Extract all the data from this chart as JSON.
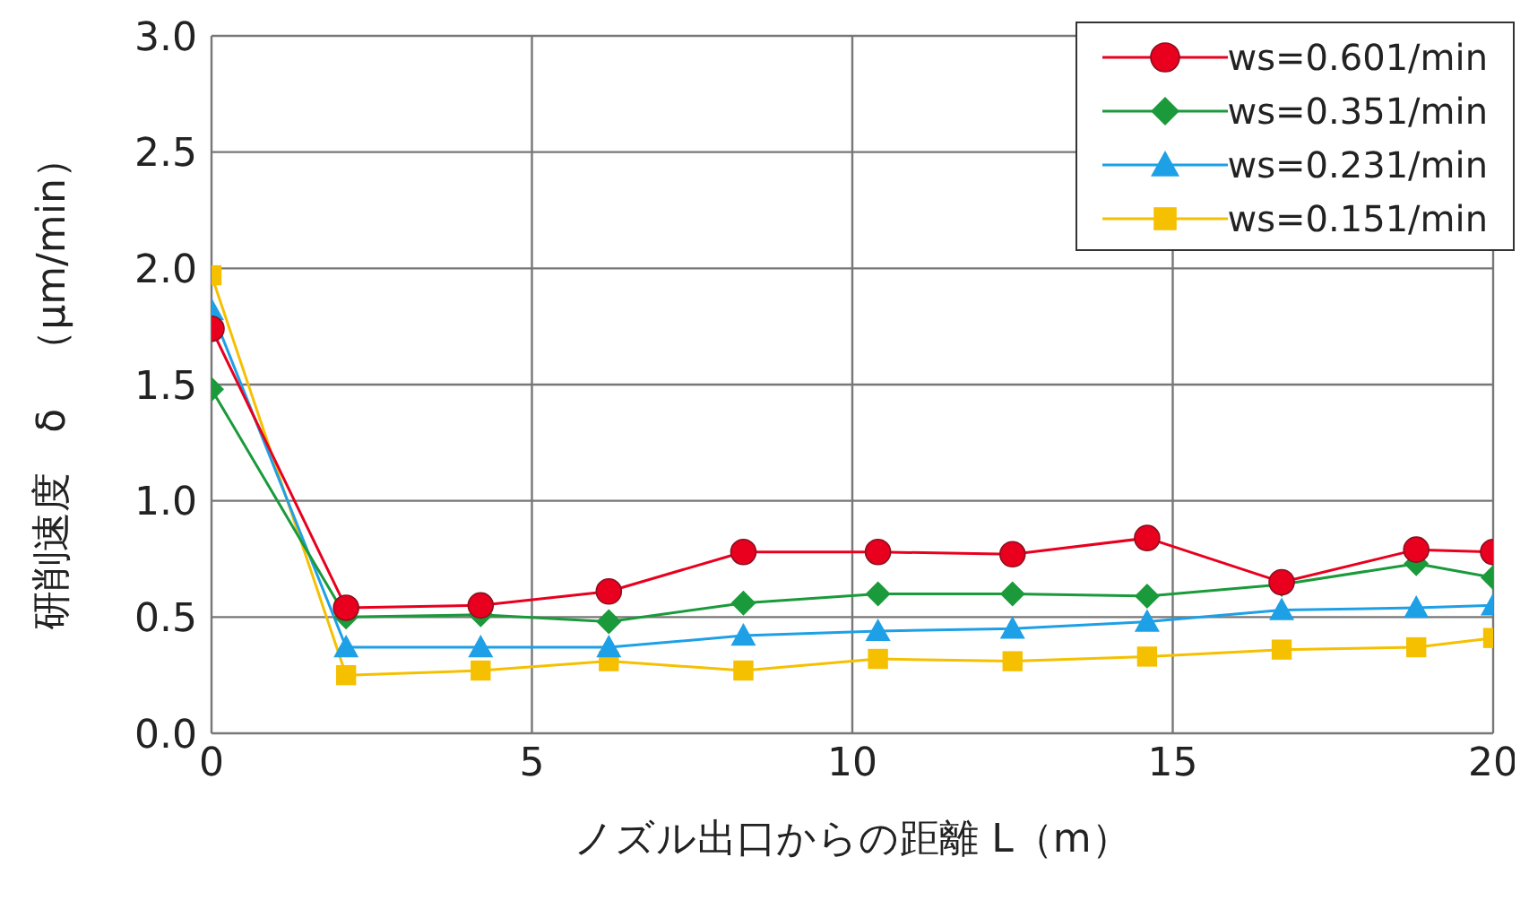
{
  "chart_data": {
    "type": "line",
    "xlabel": "ノズル出口からの距離 L（m）",
    "ylabel": "研削速度　δ　（μm/min）",
    "x": [
      0,
      2.1,
      4.2,
      6.2,
      8.3,
      10.4,
      12.5,
      14.6,
      16.7,
      18.8,
      20
    ],
    "series": [
      {
        "name": "ws=0.601/min",
        "color": "#e8001e",
        "marker": "circle",
        "values": [
          1.74,
          0.54,
          0.55,
          0.61,
          0.78,
          0.78,
          0.77,
          0.84,
          0.65,
          0.79,
          0.78
        ]
      },
      {
        "name": "ws=0.351/min",
        "color": "#1a9a3a",
        "marker": "diamond",
        "values": [
          1.48,
          0.5,
          0.51,
          0.48,
          0.56,
          0.6,
          0.6,
          0.59,
          0.64,
          0.73,
          0.67
        ]
      },
      {
        "name": "ws=0.231/min",
        "color": "#1ea0e6",
        "marker": "triangle",
        "values": [
          1.82,
          0.37,
          0.37,
          0.37,
          0.42,
          0.44,
          0.45,
          0.48,
          0.53,
          0.54,
          0.55
        ]
      },
      {
        "name": "ws=0.151/min",
        "color": "#f5c000",
        "marker": "square",
        "values": [
          1.97,
          0.25,
          0.27,
          0.31,
          0.27,
          0.32,
          0.31,
          0.33,
          0.36,
          0.37,
          0.41
        ]
      }
    ],
    "xlim": [
      0,
      20
    ],
    "xticks": [
      0,
      5,
      10,
      15,
      20
    ],
    "ylim": [
      0,
      3
    ],
    "yticks": [
      {
        "value": 0,
        "label": "0.0"
      },
      0.5,
      {
        "value": 1,
        "label": "1.0"
      },
      1.5,
      {
        "value": 2,
        "label": "2.0"
      },
      2.5,
      {
        "value": 3,
        "label": "3.0"
      }
    ],
    "grid": true,
    "legend": "top right",
    "line_style": "solid"
  }
}
